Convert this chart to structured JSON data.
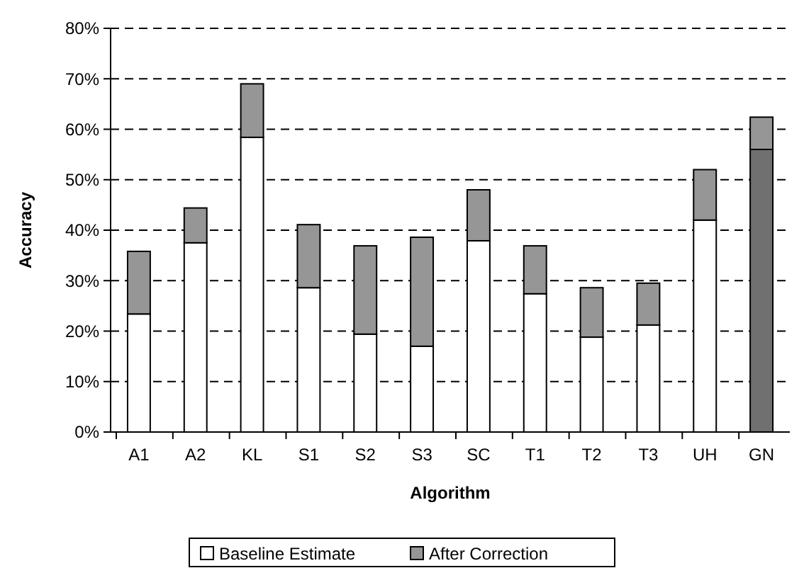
{
  "chart_data": {
    "type": "bar",
    "stacked": true,
    "xlabel": "Algorithm",
    "ylabel": "Accuracy",
    "categories": [
      "A1",
      "A2",
      "KL",
      "S1",
      "S2",
      "S3",
      "SC",
      "T1",
      "T2",
      "T3",
      "UH",
      "GN"
    ],
    "series": [
      {
        "name": "Baseline Estimate",
        "color": "#ffffff",
        "colors": [
          "#ffffff",
          "#ffffff",
          "#ffffff",
          "#ffffff",
          "#ffffff",
          "#ffffff",
          "#ffffff",
          "#ffffff",
          "#ffffff",
          "#ffffff",
          "#ffffff",
          "#707070"
        ],
        "values": [
          23.4,
          37.5,
          58.4,
          28.6,
          19.4,
          17.0,
          37.9,
          27.4,
          18.8,
          21.2,
          42.0,
          56.0
        ]
      },
      {
        "name": "After Correction",
        "color": "#969696",
        "values": [
          12.4,
          6.9,
          10.6,
          12.5,
          17.5,
          21.6,
          10.1,
          9.5,
          9.8,
          8.3,
          10.0,
          6.4
        ]
      }
    ],
    "ylim": [
      0,
      80
    ],
    "yticks": [
      {
        "value": 0,
        "label": "0%"
      },
      {
        "value": 10,
        "label": "10%"
      },
      {
        "value": 20,
        "label": "20%"
      },
      {
        "value": 30,
        "label": "30%"
      },
      {
        "value": 40,
        "label": "40%"
      },
      {
        "value": 50,
        "label": "50%"
      },
      {
        "value": 60,
        "label": "60%"
      },
      {
        "value": 70,
        "label": "70%"
      },
      {
        "value": 80,
        "label": "80%"
      }
    ],
    "grid": "y",
    "legend": "bottom"
  }
}
